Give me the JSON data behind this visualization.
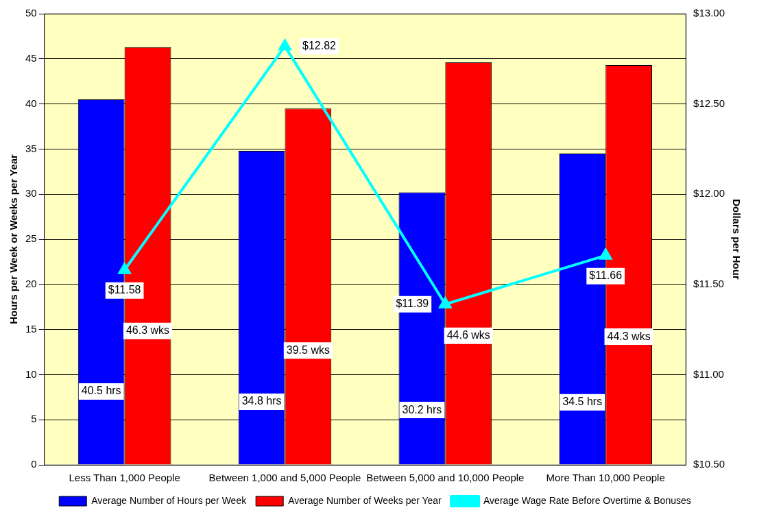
{
  "chart_data": {
    "type": "bar",
    "ylabel": "Hours per Week or Weeks per Year",
    "y2label": "Dollars per Hour",
    "categories": [
      "Less Than 1,000 People",
      "Between 1,000 and 5,000 People",
      "Between 5,000 and 10,000 People",
      "More Than 10,000 People"
    ],
    "series": [
      {
        "name": "Average Number of Hours per Week",
        "color": "#0000ff",
        "values": [
          40.5,
          34.8,
          30.2,
          34.5
        ],
        "value_labels": [
          "40.5 hrs",
          "34.8 hrs",
          "30.2 hrs",
          "34.5 hrs"
        ]
      },
      {
        "name": "Average Number of Weeks per Year",
        "color": "#ff0000",
        "values": [
          46.3,
          39.5,
          44.6,
          44.3
        ],
        "value_labels": [
          "46.3 wks",
          "39.5 wks",
          "44.6 wks",
          "44.3 wks"
        ]
      },
      {
        "name": "Average Wage Rate Before Overtime & Bonuses",
        "type": "line",
        "axis": "y2",
        "color": "#00ffff",
        "marker": "triangle",
        "values": [
          11.58,
          12.82,
          11.39,
          11.66
        ],
        "value_labels": [
          "$11.58",
          "$12.82",
          "$11.39",
          "$11.66"
        ]
      }
    ],
    "ylim": [
      0,
      50
    ],
    "yticks": [
      0,
      5,
      10,
      15,
      20,
      25,
      30,
      35,
      40,
      45,
      50
    ],
    "y2lim": [
      10.5,
      13
    ],
    "y2ticks": [
      {
        "value": 10.5,
        "label": "$10.50"
      },
      {
        "value": 11,
        "label": "$11.00"
      },
      {
        "value": 11.5,
        "label": "$11.50"
      },
      {
        "value": 12,
        "label": "$12.00"
      },
      {
        "value": 12.5,
        "label": "$12.50"
      },
      {
        "value": 13,
        "label": "$13.00"
      }
    ],
    "grid": "y",
    "legend": "bottom"
  }
}
